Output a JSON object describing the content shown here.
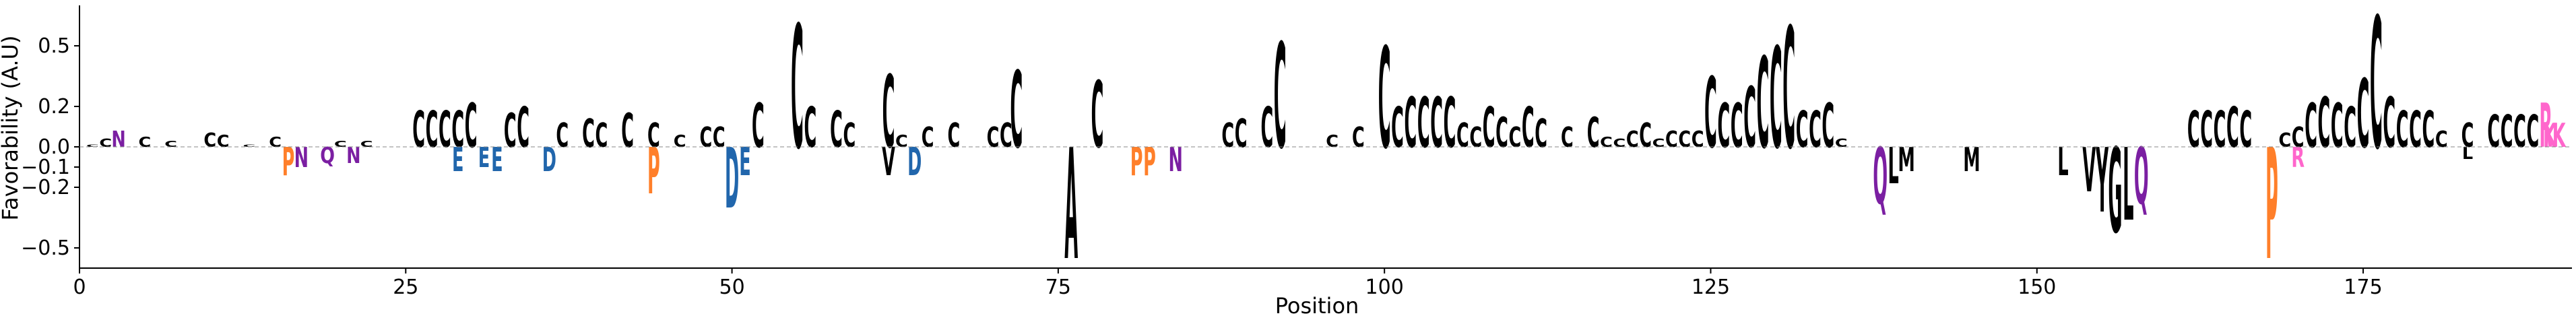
{
  "chart_data": {
    "type": "sequence-logo",
    "xlabel": "Position",
    "ylabel": "Favorability (A.U)",
    "xlim": [
      0,
      191
    ],
    "ylim": [
      -0.6,
      0.7
    ],
    "xticks": [
      0,
      25,
      50,
      75,
      100,
      125,
      150,
      175
    ],
    "yticks": [
      -0.5,
      -0.2,
      -0.1,
      0.0,
      0.2,
      0.5
    ],
    "ytick_labels": [
      "−0.5",
      "−0.2",
      "−0.1",
      "0.0",
      "0.2",
      "0.5"
    ],
    "grid": false,
    "colors": {
      "C": "#000000",
      "P": "#ff7f2a",
      "R": "#ff66cc",
      "K": "#ff66cc",
      "D": "#2166ac",
      "E": "#2166ac",
      "W": "#9a4a14",
      "Q": "#7b1fa2",
      "N": "#7b1fa2",
      "hydrophobic": "#000000",
      "polar": "#3cb371"
    },
    "positive": [
      {
        "x": 1,
        "letter": "C",
        "value": 0.01
      },
      {
        "x": 2,
        "letter": "C",
        "value": 0.04
      },
      {
        "x": 3,
        "letter": "N",
        "value": 0.08
      },
      {
        "x": 5,
        "letter": "C",
        "value": 0.05
      },
      {
        "x": 7,
        "letter": "C",
        "value": 0.03
      },
      {
        "x": 10,
        "letter": "C",
        "value": 0.07
      },
      {
        "x": 11,
        "letter": "C",
        "value": 0.06
      },
      {
        "x": 13,
        "letter": "C",
        "value": 0.01
      },
      {
        "x": 15,
        "letter": "C",
        "value": 0.05
      },
      {
        "x": 20,
        "letter": "C",
        "value": 0.03
      },
      {
        "x": 22,
        "letter": "C",
        "value": 0.03
      },
      {
        "x": 26,
        "letter": "C",
        "value": 0.18
      },
      {
        "x": 27,
        "letter": "C",
        "value": 0.18
      },
      {
        "x": 28,
        "letter": "C",
        "value": 0.18
      },
      {
        "x": 29,
        "letter": "C",
        "value": 0.18
      },
      {
        "x": 30,
        "letter": "C",
        "value": 0.22
      },
      {
        "x": 33,
        "letter": "C",
        "value": 0.17
      },
      {
        "x": 34,
        "letter": "C",
        "value": 0.2
      },
      {
        "x": 37,
        "letter": "C",
        "value": 0.12
      },
      {
        "x": 39,
        "letter": "C",
        "value": 0.14
      },
      {
        "x": 40,
        "letter": "C",
        "value": 0.12
      },
      {
        "x": 42,
        "letter": "C",
        "value": 0.17
      },
      {
        "x": 44,
        "letter": "C",
        "value": 0.12
      },
      {
        "x": 46,
        "letter": "C",
        "value": 0.06
      },
      {
        "x": 48,
        "letter": "C",
        "value": 0.1
      },
      {
        "x": 49,
        "letter": "C",
        "value": 0.1
      },
      {
        "x": 52,
        "letter": "C",
        "value": 0.22
      },
      {
        "x": 55,
        "letter": "C",
        "value": 0.61
      },
      {
        "x": 56,
        "letter": "C",
        "value": 0.2
      },
      {
        "x": 58,
        "letter": "C",
        "value": 0.18
      },
      {
        "x": 59,
        "letter": "C",
        "value": 0.12
      },
      {
        "x": 62,
        "letter": "C",
        "value": 0.36
      },
      {
        "x": 63,
        "letter": "C",
        "value": 0.06
      },
      {
        "x": 65,
        "letter": "C",
        "value": 0.1
      },
      {
        "x": 67,
        "letter": "C",
        "value": 0.12
      },
      {
        "x": 70,
        "letter": "C",
        "value": 0.1
      },
      {
        "x": 71,
        "letter": "C",
        "value": 0.12
      },
      {
        "x": 71.8,
        "letter": "C",
        "value": 0.38
      },
      {
        "x": 78,
        "letter": "C",
        "value": 0.33
      },
      {
        "x": 88,
        "letter": "C",
        "value": 0.12
      },
      {
        "x": 89,
        "letter": "C",
        "value": 0.14
      },
      {
        "x": 91,
        "letter": "C",
        "value": 0.2
      },
      {
        "x": 92,
        "letter": "C",
        "value": 0.52
      },
      {
        "x": 96,
        "letter": "C",
        "value": 0.06
      },
      {
        "x": 98,
        "letter": "C",
        "value": 0.1
      },
      {
        "x": 100,
        "letter": "C",
        "value": 0.5
      },
      {
        "x": 101,
        "letter": "C",
        "value": 0.2
      },
      {
        "x": 102,
        "letter": "C",
        "value": 0.25
      },
      {
        "x": 103,
        "letter": "C",
        "value": 0.25
      },
      {
        "x": 104,
        "letter": "C",
        "value": 0.25
      },
      {
        "x": 105,
        "letter": "C",
        "value": 0.25
      },
      {
        "x": 106,
        "letter": "C",
        "value": 0.12
      },
      {
        "x": 107,
        "letter": "C",
        "value": 0.1
      },
      {
        "x": 108,
        "letter": "C",
        "value": 0.2
      },
      {
        "x": 109,
        "letter": "C",
        "value": 0.15
      },
      {
        "x": 110,
        "letter": "C",
        "value": 0.1
      },
      {
        "x": 111,
        "letter": "C",
        "value": 0.2
      },
      {
        "x": 112,
        "letter": "C",
        "value": 0.14
      },
      {
        "x": 114,
        "letter": "C",
        "value": 0.1
      },
      {
        "x": 116,
        "letter": "C",
        "value": 0.15
      },
      {
        "x": 117,
        "letter": "C",
        "value": 0.05
      },
      {
        "x": 118,
        "letter": "C",
        "value": 0.04
      },
      {
        "x": 119,
        "letter": "C",
        "value": 0.08
      },
      {
        "x": 120,
        "letter": "C",
        "value": 0.12
      },
      {
        "x": 121,
        "letter": "C",
        "value": 0.04
      },
      {
        "x": 122,
        "letter": "C",
        "value": 0.08
      },
      {
        "x": 123,
        "letter": "C",
        "value": 0.08
      },
      {
        "x": 124,
        "letter": "C",
        "value": 0.08
      },
      {
        "x": 125,
        "letter": "C",
        "value": 0.35
      },
      {
        "x": 126,
        "letter": "C",
        "value": 0.22
      },
      {
        "x": 127,
        "letter": "C",
        "value": 0.22
      },
      {
        "x": 128,
        "letter": "C",
        "value": 0.3
      },
      {
        "x": 129,
        "letter": "C",
        "value": 0.45
      },
      {
        "x": 130,
        "letter": "C",
        "value": 0.5
      },
      {
        "x": 131,
        "letter": "C",
        "value": 0.6
      },
      {
        "x": 132,
        "letter": "C",
        "value": 0.18
      },
      {
        "x": 133,
        "letter": "C",
        "value": 0.18
      },
      {
        "x": 134,
        "letter": "C",
        "value": 0.22
      },
      {
        "x": 135,
        "letter": "C",
        "value": 0.04
      },
      {
        "x": 162,
        "letter": "C",
        "value": 0.18
      },
      {
        "x": 163,
        "letter": "C",
        "value": 0.18
      },
      {
        "x": 164,
        "letter": "C",
        "value": 0.18
      },
      {
        "x": 165,
        "letter": "C",
        "value": 0.2
      },
      {
        "x": 166,
        "letter": "C",
        "value": 0.18
      },
      {
        "x": 169,
        "letter": "C",
        "value": 0.07
      },
      {
        "x": 170,
        "letter": "C",
        "value": 0.1
      },
      {
        "x": 171,
        "letter": "C",
        "value": 0.22
      },
      {
        "x": 172,
        "letter": "C",
        "value": 0.25
      },
      {
        "x": 173,
        "letter": "C",
        "value": 0.22
      },
      {
        "x": 174,
        "letter": "C",
        "value": 0.2
      },
      {
        "x": 175,
        "letter": "C",
        "value": 0.34
      },
      {
        "x": 176,
        "letter": "C",
        "value": 0.65
      },
      {
        "x": 177,
        "letter": "C",
        "value": 0.25
      },
      {
        "x": 178,
        "letter": "C",
        "value": 0.18
      },
      {
        "x": 179,
        "letter": "C",
        "value": 0.18
      },
      {
        "x": 180,
        "letter": "C",
        "value": 0.18
      },
      {
        "x": 181,
        "letter": "C",
        "value": 0.08
      },
      {
        "x": 183,
        "letter": "C",
        "value": 0.12
      },
      {
        "x": 185,
        "letter": "C",
        "value": 0.16
      },
      {
        "x": 186,
        "letter": "C",
        "value": 0.16
      },
      {
        "x": 187,
        "letter": "C",
        "value": 0.16
      },
      {
        "x": 188,
        "letter": "C",
        "value": 0.16
      },
      {
        "x": 189,
        "letter": "R",
        "value": 0.22
      },
      {
        "x": 189.3,
        "letter": "K",
        "value": 0.12
      },
      {
        "x": 190,
        "letter": "K",
        "value": 0.12
      }
    ],
    "negative": [
      {
        "x": 16,
        "letter": "P",
        "value": -0.14
      },
      {
        "x": 17,
        "letter": "N",
        "value": -0.1
      },
      {
        "x": 19,
        "letter": "Q",
        "value": -0.08
      },
      {
        "x": 21,
        "letter": "N",
        "value": -0.08
      },
      {
        "x": 29,
        "letter": "E",
        "value": -0.12
      },
      {
        "x": 31,
        "letter": "E",
        "value": -0.1
      },
      {
        "x": 32,
        "letter": "E",
        "value": -0.12
      },
      {
        "x": 36,
        "letter": "D",
        "value": -0.12
      },
      {
        "x": 44,
        "letter": "P",
        "value": -0.23
      },
      {
        "x": 50,
        "letter": "D",
        "value": -0.3
      },
      {
        "x": 51,
        "letter": "E",
        "value": -0.14
      },
      {
        "x": 62,
        "letter": "V",
        "value": -0.14
      },
      {
        "x": 64,
        "letter": "D",
        "value": -0.14
      },
      {
        "x": 76,
        "letter": "A",
        "value": -0.55
      },
      {
        "x": 81,
        "letter": "P",
        "value": -0.14
      },
      {
        "x": 82,
        "letter": "P",
        "value": -0.14
      },
      {
        "x": 84,
        "letter": "N",
        "value": -0.12
      },
      {
        "x": 138,
        "letter": "Q",
        "value": -0.28
      },
      {
        "x": 139,
        "letter": "L",
        "value": -0.18
      },
      {
        "x": 140,
        "letter": "M",
        "value": -0.12
      },
      {
        "x": 145,
        "letter": "M",
        "value": -0.12
      },
      {
        "x": 152,
        "letter": "L",
        "value": -0.14
      },
      {
        "x": 154,
        "letter": "V",
        "value": -0.22
      },
      {
        "x": 155,
        "letter": "Y",
        "value": -0.32
      },
      {
        "x": 156,
        "letter": "G",
        "value": -0.42
      },
      {
        "x": 157,
        "letter": "L",
        "value": -0.36
      },
      {
        "x": 158,
        "letter": "Q",
        "value": -0.28
      },
      {
        "x": 168,
        "letter": "P",
        "value": -0.55
      },
      {
        "x": 170,
        "letter": "R",
        "value": -0.1
      },
      {
        "x": 183,
        "letter": "L",
        "value": -0.06
      }
    ]
  }
}
